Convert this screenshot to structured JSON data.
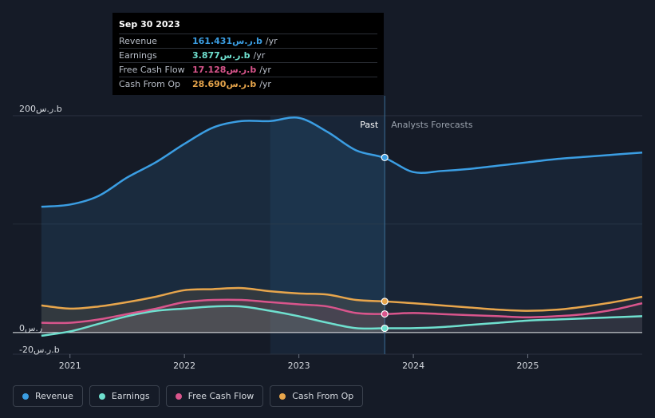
{
  "tooltip": {
    "date": "Sep 30 2023",
    "rows": [
      {
        "label": "Revenue",
        "value": "161.431ر.س.b",
        "unit": "/yr",
        "color": "#3b9ee3"
      },
      {
        "label": "Earnings",
        "value": "3.877ر.س.b",
        "unit": "/yr",
        "color": "#6fe0cf"
      },
      {
        "label": "Free Cash Flow",
        "value": "17.128ر.س.b",
        "unit": "/yr",
        "color": "#d9558c"
      },
      {
        "label": "Cash From Op",
        "value": "28.690ر.س.b",
        "unit": "/yr",
        "color": "#e8a64c"
      }
    ]
  },
  "legend": [
    {
      "label": "Revenue",
      "color": "#3b9ee3"
    },
    {
      "label": "Earnings",
      "color": "#6fe0cf"
    },
    {
      "label": "Free Cash Flow",
      "color": "#d9558c"
    },
    {
      "label": "Cash From Op",
      "color": "#e8a64c"
    }
  ],
  "chart_data": {
    "type": "area",
    "title": "",
    "xlabel": "",
    "ylabel": "",
    "ylim": [
      -20,
      200
    ],
    "y_ticks": [
      {
        "value": 200,
        "label": "200ر.س.b"
      },
      {
        "value": 0,
        "label": "0ر.س"
      },
      {
        "value": -20,
        "label": "-20ر.س.b"
      }
    ],
    "x_ticks": [
      "2021",
      "2022",
      "2023",
      "2024",
      "2025"
    ],
    "x_tick_values": [
      2021.0,
      2022.0,
      2023.0,
      2024.0,
      2025.0
    ],
    "xlim": [
      2020.5,
      2026.0
    ],
    "past_label": "Past",
    "forecast_label": "Analysts Forecasts",
    "divider_x": 2023.75,
    "highlight_start_x": 2022.75,
    "grid": true,
    "series": [
      {
        "name": "Revenue",
        "color": "#3b9ee3",
        "x": [
          2020.75,
          2021.0,
          2021.25,
          2021.5,
          2021.75,
          2022.0,
          2022.25,
          2022.5,
          2022.75,
          2023.0,
          2023.25,
          2023.5,
          2023.75,
          2024.0,
          2024.25,
          2024.5,
          2024.75,
          2025.0,
          2025.25,
          2025.5,
          2025.75,
          2026.0
        ],
        "y": [
          116,
          118,
          126,
          143,
          157,
          174,
          189,
          195,
          195,
          198,
          185,
          168,
          161,
          148,
          149,
          151,
          154,
          157,
          160,
          162,
          164,
          166
        ]
      },
      {
        "name": "Earnings",
        "color": "#6fe0cf",
        "x": [
          2020.75,
          2021.0,
          2021.25,
          2021.5,
          2021.75,
          2022.0,
          2022.25,
          2022.5,
          2022.75,
          2023.0,
          2023.25,
          2023.5,
          2023.75,
          2024.0,
          2024.25,
          2024.5,
          2024.75,
          2025.0,
          2025.25,
          2025.5,
          2025.75,
          2026.0
        ],
        "y": [
          -3,
          1,
          8,
          15,
          20,
          22,
          24,
          24,
          20,
          15,
          9,
          4,
          3.9,
          4,
          5,
          7,
          9,
          11,
          12,
          13,
          14,
          15
        ]
      },
      {
        "name": "Free Cash Flow",
        "color": "#d9558c",
        "x": [
          2020.75,
          2021.0,
          2021.25,
          2021.5,
          2021.75,
          2022.0,
          2022.25,
          2022.5,
          2022.75,
          2023.0,
          2023.25,
          2023.5,
          2023.75,
          2024.0,
          2024.25,
          2024.5,
          2024.75,
          2025.0,
          2025.25,
          2025.5,
          2025.75,
          2026.0
        ],
        "y": [
          9,
          9,
          12,
          17,
          22,
          28,
          30,
          30,
          28,
          26,
          24,
          18,
          17.1,
          18,
          17,
          16,
          15,
          14,
          15,
          17,
          21,
          27
        ]
      },
      {
        "name": "Cash From Op",
        "color": "#e8a64c",
        "x": [
          2020.75,
          2021.0,
          2021.25,
          2021.5,
          2021.75,
          2022.0,
          2022.25,
          2022.5,
          2022.75,
          2023.0,
          2023.25,
          2023.5,
          2023.75,
          2024.0,
          2024.25,
          2024.5,
          2024.75,
          2025.0,
          2025.25,
          2025.5,
          2025.75,
          2026.0
        ],
        "y": [
          25,
          22,
          24,
          28,
          33,
          39,
          40,
          41,
          38,
          36,
          35,
          30,
          28.7,
          27,
          25,
          23,
          21,
          20,
          21,
          24,
          28,
          33
        ]
      }
    ],
    "markers": [
      {
        "series": "Revenue",
        "x": 2023.75,
        "y": 161.431
      },
      {
        "series": "Earnings",
        "x": 2023.75,
        "y": 3.877
      },
      {
        "series": "Free Cash Flow",
        "x": 2023.75,
        "y": 17.128
      },
      {
        "series": "Cash From Op",
        "x": 2023.75,
        "y": 28.69
      }
    ]
  }
}
